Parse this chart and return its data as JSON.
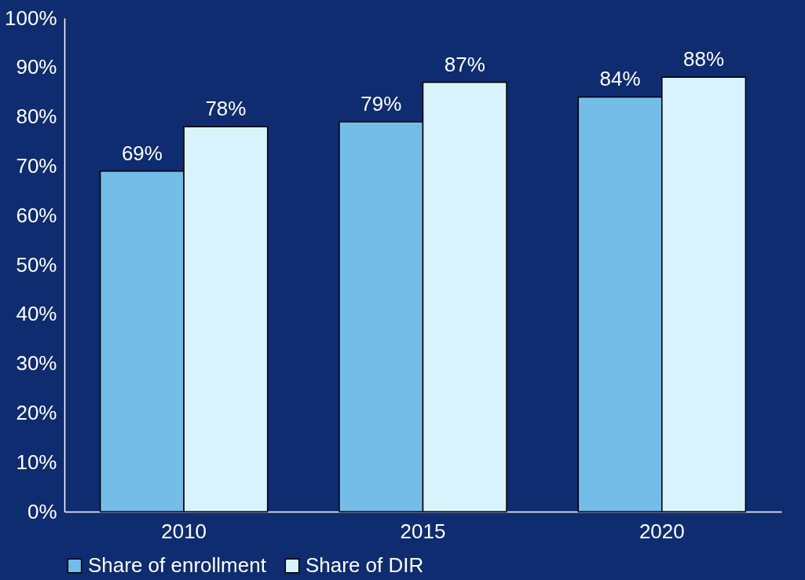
{
  "chart_data": {
    "type": "bar",
    "categories": [
      "2010",
      "2015",
      "2020"
    ],
    "series": [
      {
        "name": "Share of enrollment",
        "color": "#74bde8",
        "values": [
          69,
          79,
          84
        ],
        "value_labels": [
          "69%",
          "79%",
          "84%"
        ]
      },
      {
        "name": "Share of DIR",
        "color": "#d8f3fb",
        "values": [
          78,
          87,
          88
        ],
        "value_labels": [
          "78%",
          "87%",
          "88%"
        ]
      }
    ],
    "ylim": [
      0,
      100
    ],
    "yticks": [
      {
        "value": 0,
        "label": "0%"
      },
      {
        "value": 10,
        "label": "10%"
      },
      {
        "value": 20,
        "label": "20%"
      },
      {
        "value": 30,
        "label": "30%"
      },
      {
        "value": 40,
        "label": "40%"
      },
      {
        "value": 50,
        "label": "50%"
      },
      {
        "value": 60,
        "label": "60%"
      },
      {
        "value": 70,
        "label": "70%"
      },
      {
        "value": 80,
        "label": "80%"
      },
      {
        "value": 90,
        "label": "90%"
      },
      {
        "value": 100,
        "label": "100%"
      }
    ],
    "grid": false,
    "legend": "bottom"
  }
}
